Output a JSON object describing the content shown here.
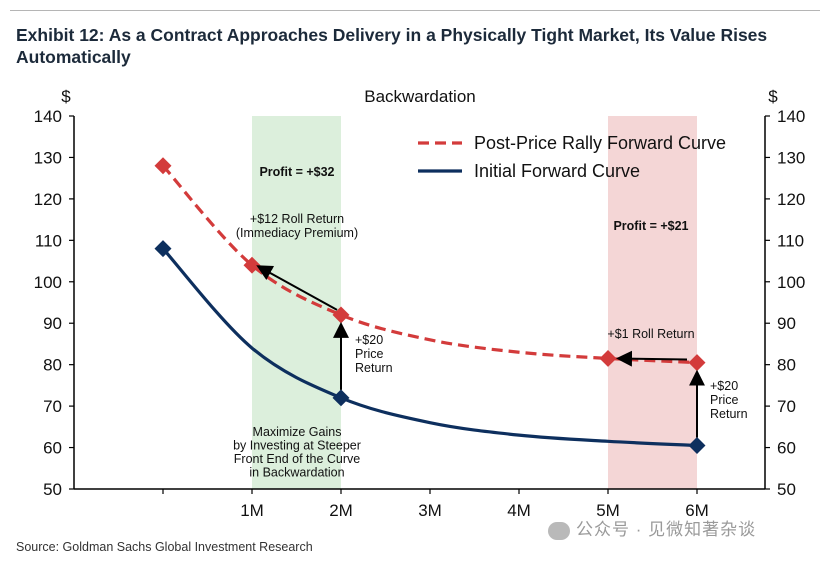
{
  "header": {
    "exhibit_title": "Exhibit 12: As a Contract Approaches Delivery in a Physically Tight Market, Its Value Rises Automatically"
  },
  "footer": {
    "source": "Source: Goldman Sachs Global Investment Research",
    "watermark": "公众号 · 见微知著杂谈"
  },
  "chart_data": {
    "type": "line",
    "title": "Backwardation",
    "ylabel_left": "$",
    "ylabel_right": "$",
    "ylim": [
      50,
      140
    ],
    "yticks": [
      50,
      60,
      70,
      80,
      90,
      100,
      110,
      120,
      130,
      140
    ],
    "categories": [
      "",
      "1M",
      "2M",
      "3M",
      "4M",
      "5M",
      "6M"
    ],
    "grid": false,
    "legend_position": "top-right",
    "series": [
      {
        "name": "Post-Price Rally Forward Curve",
        "style": "dashed",
        "color": "#d33b3b",
        "x": [
          0,
          1,
          2,
          3,
          4,
          5,
          6
        ],
        "values": [
          128,
          104,
          92,
          86,
          83,
          81.5,
          80.5
        ],
        "markers": [
          0,
          1,
          2,
          5,
          6
        ]
      },
      {
        "name": "Initial Forward Curve",
        "style": "solid",
        "color": "#0d2f5e",
        "x": [
          0,
          1,
          2,
          3,
          4,
          5,
          6
        ],
        "values": [
          108,
          84,
          72,
          66,
          63,
          61.5,
          60.5
        ],
        "markers": [
          0,
          2,
          6
        ]
      }
    ],
    "bands": [
      {
        "x_from": 1,
        "x_to": 2,
        "color": "#dcefdc",
        "label": "Profit = +$32"
      },
      {
        "x_from": 5,
        "x_to": 6,
        "color": "#f2cfcf",
        "label": "Profit = +$21"
      }
    ],
    "annotations": [
      {
        "text": "+$12 Roll Return\n(Immediacy Premium)"
      },
      {
        "text": "+$20\nPrice\nReturn"
      },
      {
        "text": "Maximize Gains\nby Investing at Steeper\nFront End of the Curve\nin Backwardation"
      },
      {
        "text": "+$1 Roll Return"
      },
      {
        "text": "+$20\nPrice\nReturn"
      }
    ]
  }
}
